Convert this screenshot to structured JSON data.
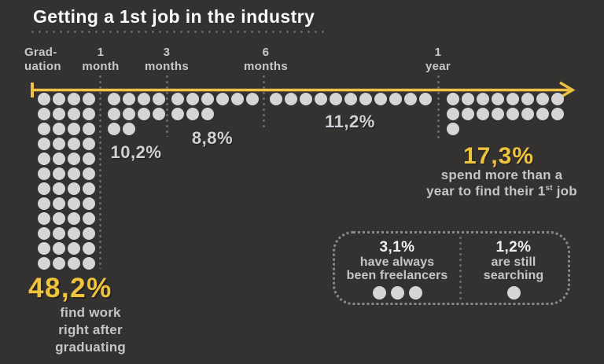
{
  "title": "Getting a 1st job in the industry",
  "colors": {
    "background": "#343231",
    "dot": "#d6d5d3",
    "accent_yellow": "#eec043",
    "label_gray": "#ced2d6",
    "caption_gray": "#c6c5c3",
    "title_white": "#fafaf8"
  },
  "timeline": {
    "ticks": [
      {
        "line1": "Grad-",
        "line2": "uation"
      },
      {
        "line1": "1",
        "line2": "month"
      },
      {
        "line1": "3",
        "line2": "months"
      },
      {
        "line1": "6",
        "line2": "months"
      },
      {
        "line1": "1",
        "line2": "year"
      }
    ]
  },
  "groups": [
    {
      "id": "graduation",
      "value_label": "48,2%",
      "rows": [
        4,
        4,
        4,
        4,
        4,
        4,
        4,
        4,
        4,
        4,
        4,
        4
      ],
      "caption": [
        "find work",
        "right after",
        "graduating"
      ]
    },
    {
      "id": "one_month",
      "value_label": "10,2%",
      "rows": [
        4,
        4,
        2
      ]
    },
    {
      "id": "three_months",
      "value_label": "8,8%",
      "rows": [
        6,
        3
      ]
    },
    {
      "id": "six_months",
      "value_label": "11,2%",
      "rows": [
        11
      ]
    },
    {
      "id": "one_year",
      "value_label": "17,3%",
      "rows": [
        8,
        8,
        1
      ],
      "caption_line1": "spend more than a",
      "caption_line2_pre": "year to find their 1",
      "caption_line2_sup": "st",
      "caption_line2_post": " job"
    },
    {
      "id": "freelancers",
      "value_label": "3,1%",
      "rows": [
        3
      ],
      "caption": [
        "have always",
        "been freelancers"
      ]
    },
    {
      "id": "searching",
      "value_label": "1,2%",
      "rows": [
        1
      ],
      "caption": [
        "are still",
        "searching"
      ]
    }
  ],
  "chart_data": {
    "type": "bar",
    "variant": "pictogram / unit chart (1 dot per ~1%)",
    "title": "Getting a 1st job in the industry",
    "categories": [
      "Right after graduating",
      "1 month",
      "3 months",
      "6 months",
      "More than a year",
      "Have always been freelancers",
      "Are still searching"
    ],
    "values": [
      48.2,
      10.2,
      8.8,
      11.2,
      17.3,
      3.1,
      1.2
    ],
    "value_labels": [
      "48,2%",
      "10,2%",
      "8,8%",
      "11,2%",
      "17,3%",
      "3,1%",
      "1,2%"
    ],
    "dot_counts": [
      48,
      10,
      9,
      11,
      17,
      3,
      1
    ],
    "axis_ticks": [
      "Graduation",
      "1 month",
      "3 months",
      "6 months",
      "1 year"
    ],
    "legend_position": "none",
    "grid": false
  }
}
